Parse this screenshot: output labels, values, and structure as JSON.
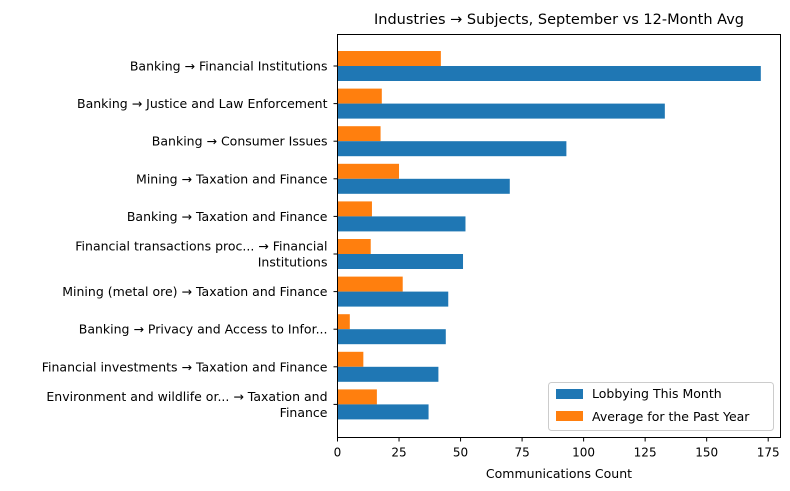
{
  "chart_data": {
    "type": "bar",
    "orientation": "horizontal",
    "title": "Industries → Subjects, September vs 12-Month Avg",
    "xlabel": "Communications Count",
    "ylabel": "",
    "xlim": [
      0,
      180
    ],
    "xticks": [
      0,
      25,
      50,
      75,
      100,
      125,
      150,
      175
    ],
    "grid": false,
    "legend_position": "lower-right",
    "categories": [
      "Banking → Financial Institutions",
      "Banking → Justice and Law Enforcement",
      "Banking → Consumer Issues",
      "Mining → Taxation and Finance",
      "Banking → Taxation and Finance",
      "Financial transactions proc... → Financial Institutions",
      "Mining (metal ore) → Taxation and Finance",
      "Banking → Privacy and Access to Infor...",
      "Financial investments → Taxation and Finance",
      "Environment and wildlife or... → Taxation and Finance"
    ],
    "category_lines": [
      [
        "Banking → Financial Institutions"
      ],
      [
        "Banking → Justice and Law Enforcement"
      ],
      [
        "Banking → Consumer Issues"
      ],
      [
        "Mining → Taxation and Finance"
      ],
      [
        "Banking → Taxation and Finance"
      ],
      [
        "Financial transactions proc... → Financial",
        "Institutions"
      ],
      [
        "Mining (metal ore) → Taxation and Finance"
      ],
      [
        "Banking → Privacy and Access to Infor..."
      ],
      [
        "Financial investments → Taxation and Finance"
      ],
      [
        "Environment and wildlife or... → Taxation and",
        "Finance"
      ]
    ],
    "series": [
      {
        "name": "Lobbying This Month",
        "color": "#1f77b4",
        "values": [
          172,
          133,
          93,
          70,
          52,
          51,
          45,
          44,
          41,
          37
        ]
      },
      {
        "name": "Average for the Past Year",
        "color": "#ff7f0e",
        "values": [
          42,
          18,
          17.5,
          25,
          14,
          13.5,
          26.5,
          5,
          10.5,
          16
        ]
      }
    ]
  }
}
